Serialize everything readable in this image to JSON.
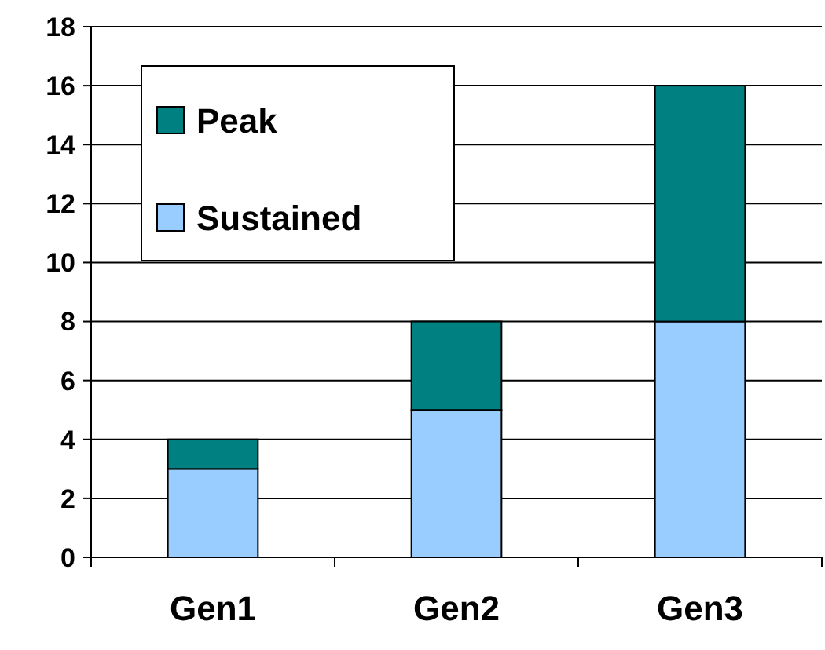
{
  "chart_data": {
    "type": "bar",
    "stacked": true,
    "categories": [
      "Gen1",
      "Gen2",
      "Gen3"
    ],
    "series": [
      {
        "name": "Sustained",
        "color": "#99ccff",
        "values": [
          3,
          5,
          8
        ]
      },
      {
        "name": "Peak",
        "color": "#008080",
        "values": [
          1,
          3,
          8
        ]
      }
    ],
    "ylim": [
      0,
      18
    ],
    "yticks": [
      0,
      2,
      4,
      6,
      8,
      10,
      12,
      14,
      16,
      18
    ],
    "grid": "y",
    "legend": "top left"
  }
}
